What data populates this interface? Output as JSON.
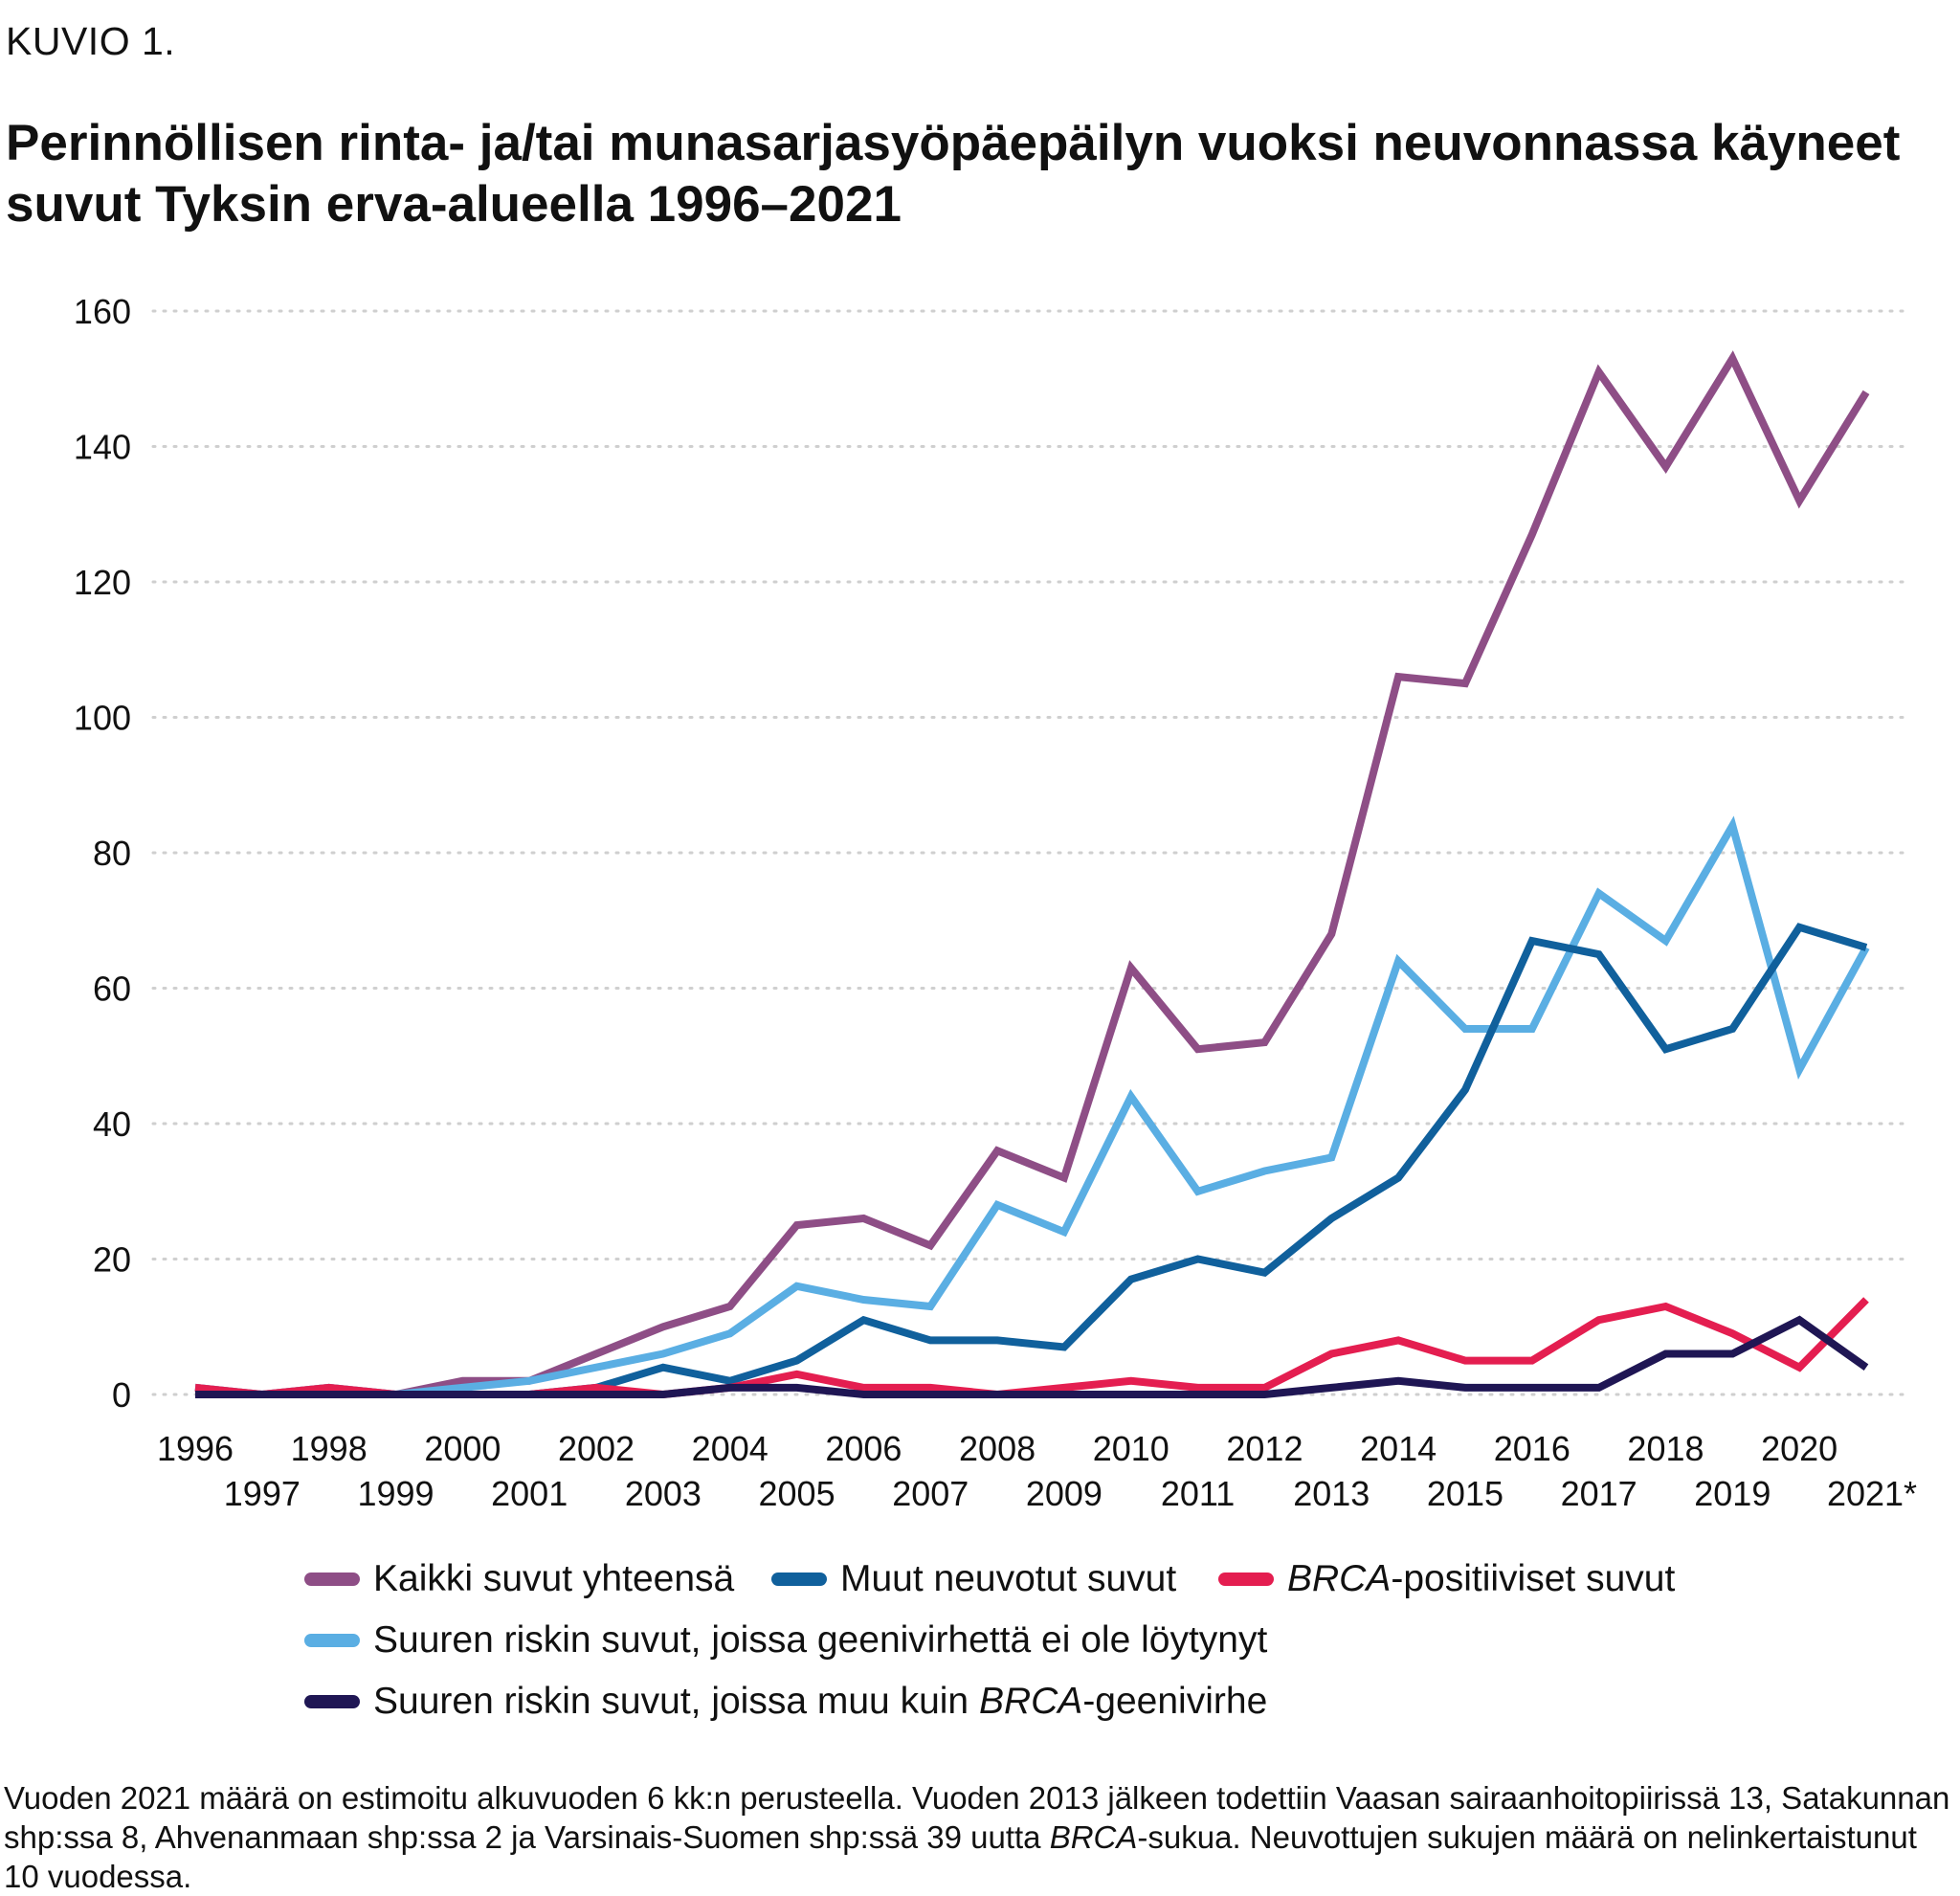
{
  "figure_label": "KUVIO 1.",
  "colors": {
    "kaikki": "#8e4e86",
    "muut": "#10609c",
    "brca": "#e41e50",
    "ei_loytynyt": "#5aaee3",
    "muu_geenivirhe": "#1f1654",
    "grid": "#cfcfcf"
  },
  "legend": {
    "kaikki": "Kaikki suvut yhteensä",
    "muut": "Muut neuvotut suvut",
    "brca_italic": "BRCA",
    "brca_rest": "-positiiviset suvut",
    "ei_loytynyt": "Suuren riskin suvut, joissa geenivirhettä ei ole löytynyt",
    "muu_geenivirhe_pre": "Suuren riskin suvut, joissa muu kuin ",
    "muu_geenivirhe_italic": "BRCA",
    "muu_geenivirhe_post": "-geenivirhe"
  },
  "footnote": {
    "part1": "Vuoden 2021 määrä on estimoitu alkuvuoden 6 kk:n perusteella. Vuoden 2013 jälkeen todettiin Vaasan sairaanhoitopiirissä 13, Satakunnan shp:ssa 8, Ahvenanmaan shp:ssa 2 ja Varsinais-Suomen shp:ssä 39 uutta ",
    "italic": "BRCA",
    "part2": "-sukua. Neuvottujen sukujen määrä on nelinkertaistunut 10 vuodessa."
  },
  "chart_data": {
    "type": "line",
    "title": "Perinnöllisen rinta- ja/tai munasarjasyöpäepäilyn vuoksi neuvonnassa käyneet suvut Tyksin erva-alueella 1996–2021",
    "xlabel": "",
    "ylabel": "",
    "ylim": [
      0,
      160
    ],
    "yticks": [
      "0",
      "20",
      "40",
      "60",
      "80",
      "100",
      "120",
      "140",
      "160"
    ],
    "grid": "horizontal dotted",
    "legend_position": "bottom",
    "categories": [
      "1996",
      "1997",
      "1998",
      "1999",
      "2000",
      "2001",
      "2002",
      "2003",
      "2004",
      "2005",
      "2006",
      "2007",
      "2008",
      "2009",
      "2010",
      "2011",
      "2012",
      "2013",
      "2014",
      "2015",
      "2016",
      "2017",
      "2018",
      "2019",
      "2020",
      "2021*"
    ],
    "series": [
      {
        "name": "Kaikki suvut yhteensä",
        "color_key": "kaikki",
        "values": [
          1,
          0,
          1,
          0,
          2,
          2,
          6,
          10,
          13,
          25,
          26,
          22,
          36,
          32,
          63,
          51,
          52,
          68,
          106,
          105,
          127,
          151,
          137,
          153,
          132,
          148
        ]
      },
      {
        "name": "Suuren riskin suvut, joissa geenivirhettä ei ole löytynyt",
        "color_key": "ei_loytynyt",
        "values": [
          1,
          0,
          1,
          0,
          1,
          2,
          4,
          6,
          9,
          16,
          14,
          13,
          28,
          24,
          44,
          30,
          33,
          35,
          64,
          54,
          54,
          74,
          67,
          84,
          48,
          66
        ]
      },
      {
        "name": "Muut neuvotut suvut",
        "color_key": "muut",
        "values": [
          0,
          0,
          0,
          0,
          0,
          0,
          1,
          4,
          2,
          5,
          11,
          8,
          8,
          7,
          17,
          20,
          18,
          26,
          32,
          45,
          67,
          65,
          51,
          54,
          69,
          66
        ]
      },
      {
        "name": "BRCA-positiiviset suvut",
        "color_key": "brca",
        "values": [
          1,
          0,
          1,
          0,
          0,
          0,
          1,
          0,
          1,
          3,
          1,
          1,
          0,
          1,
          2,
          1,
          1,
          6,
          8,
          5,
          5,
          11,
          13,
          9,
          4,
          14
        ]
      },
      {
        "name": "Suuren riskin suvut, joissa muu kuin BRCA-geenivirhe",
        "color_key": "muu_geenivirhe",
        "values": [
          0,
          0,
          0,
          0,
          0,
          0,
          0,
          0,
          1,
          1,
          0,
          0,
          0,
          0,
          0,
          0,
          0,
          1,
          2,
          1,
          1,
          1,
          6,
          6,
          11,
          4
        ]
      }
    ]
  }
}
